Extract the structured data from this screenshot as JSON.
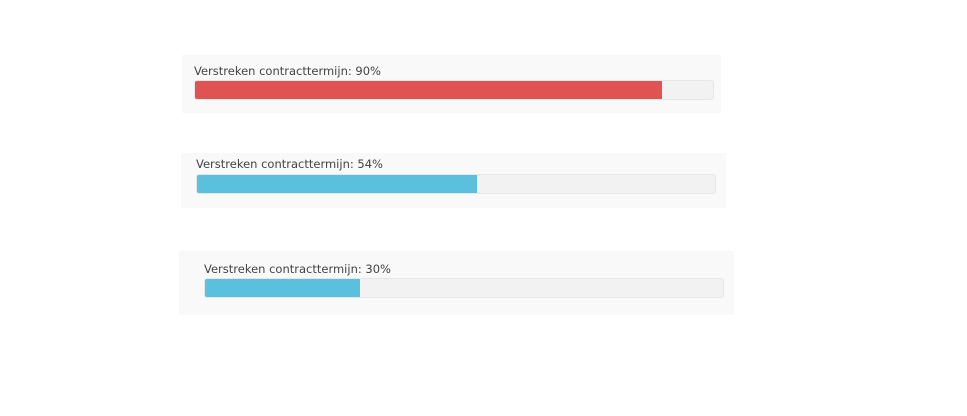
{
  "progress_panels": [
    {
      "label": "Verstreken contracttermijn: 90%",
      "percent": 90,
      "color": "#e05353"
    },
    {
      "label": "Verstreken contracttermijn: 54%",
      "percent": 54,
      "color": "#5bc0de"
    },
    {
      "label": "Verstreken contracttermijn: 30%",
      "percent": 30,
      "color": "#5bc0de"
    }
  ]
}
